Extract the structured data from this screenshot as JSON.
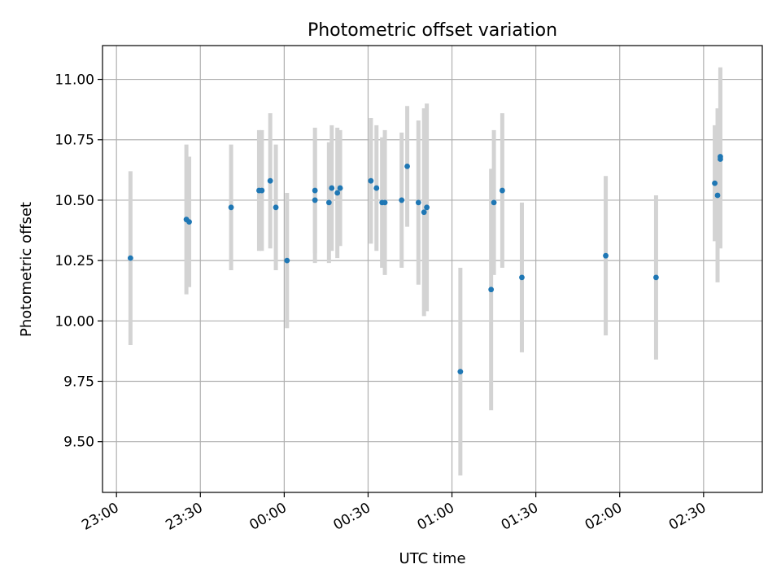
{
  "chart_data": {
    "type": "scatter",
    "title": "Photometric offset variation",
    "xlabel": "UTC time",
    "ylabel": "Photometric offset",
    "x_tick_labels": [
      "23:00",
      "23:30",
      "00:00",
      "00:30",
      "01:00",
      "01:30",
      "02:00",
      "02:30"
    ],
    "y_ticks": [
      9.5,
      9.75,
      10.0,
      10.25,
      10.5,
      10.75,
      11.0
    ],
    "y_tick_labels": [
      "9.50",
      "9.75",
      "10.00",
      "10.25",
      "10.50",
      "10.75",
      "11.00"
    ],
    "xlim": [
      "22:55",
      "02:51"
    ],
    "ylim": [
      9.29,
      11.14
    ],
    "grid": true,
    "colors": {
      "point": "#1f77b4",
      "errorbar": "#d3d3d3",
      "grid": "#b0b0b0"
    },
    "points": [
      {
        "x": "23:05",
        "y": 10.26,
        "err": 0.36
      },
      {
        "x": "23:25",
        "y": 10.42,
        "err": 0.31
      },
      {
        "x": "23:26",
        "y": 10.41,
        "err": 0.27
      },
      {
        "x": "23:41",
        "y": 10.47,
        "err": 0.26
      },
      {
        "x": "23:51",
        "y": 10.54,
        "err": 0.25
      },
      {
        "x": "23:52",
        "y": 10.54,
        "err": 0.25
      },
      {
        "x": "23:55",
        "y": 10.58,
        "err": 0.28
      },
      {
        "x": "23:57",
        "y": 10.47,
        "err": 0.26
      },
      {
        "x": "00:01",
        "y": 10.25,
        "err": 0.28
      },
      {
        "x": "00:11",
        "y": 10.54,
        "err": 0.26
      },
      {
        "x": "00:11",
        "y": 10.5,
        "err": 0.26
      },
      {
        "x": "00:16",
        "y": 10.49,
        "err": 0.25
      },
      {
        "x": "00:17",
        "y": 10.55,
        "err": 0.26
      },
      {
        "x": "00:19",
        "y": 10.53,
        "err": 0.27
      },
      {
        "x": "00:20",
        "y": 10.55,
        "err": 0.24
      },
      {
        "x": "00:31",
        "y": 10.58,
        "err": 0.26
      },
      {
        "x": "00:33",
        "y": 10.55,
        "err": 0.26
      },
      {
        "x": "00:35",
        "y": 10.49,
        "err": 0.27
      },
      {
        "x": "00:36",
        "y": 10.49,
        "err": 0.3
      },
      {
        "x": "00:42",
        "y": 10.5,
        "err": 0.28
      },
      {
        "x": "00:44",
        "y": 10.64,
        "err": 0.25
      },
      {
        "x": "00:48",
        "y": 10.49,
        "err": 0.34
      },
      {
        "x": "00:50",
        "y": 10.45,
        "err": 0.43
      },
      {
        "x": "00:51",
        "y": 10.47,
        "err": 0.43
      },
      {
        "x": "01:03",
        "y": 9.79,
        "err": 0.43
      },
      {
        "x": "01:14",
        "y": 10.13,
        "err": 0.5
      },
      {
        "x": "01:15",
        "y": 10.49,
        "err": 0.3
      },
      {
        "x": "01:18",
        "y": 10.54,
        "err": 0.32
      },
      {
        "x": "01:25",
        "y": 10.18,
        "err": 0.31
      },
      {
        "x": "01:55",
        "y": 10.27,
        "err": 0.33
      },
      {
        "x": "02:13",
        "y": 10.18,
        "err": 0.34
      },
      {
        "x": "02:34",
        "y": 10.57,
        "err": 0.24
      },
      {
        "x": "02:35",
        "y": 10.52,
        "err": 0.36
      },
      {
        "x": "02:36",
        "y": 10.68,
        "err": 0.37
      },
      {
        "x": "02:36",
        "y": 10.67,
        "err": 0.37
      }
    ]
  }
}
